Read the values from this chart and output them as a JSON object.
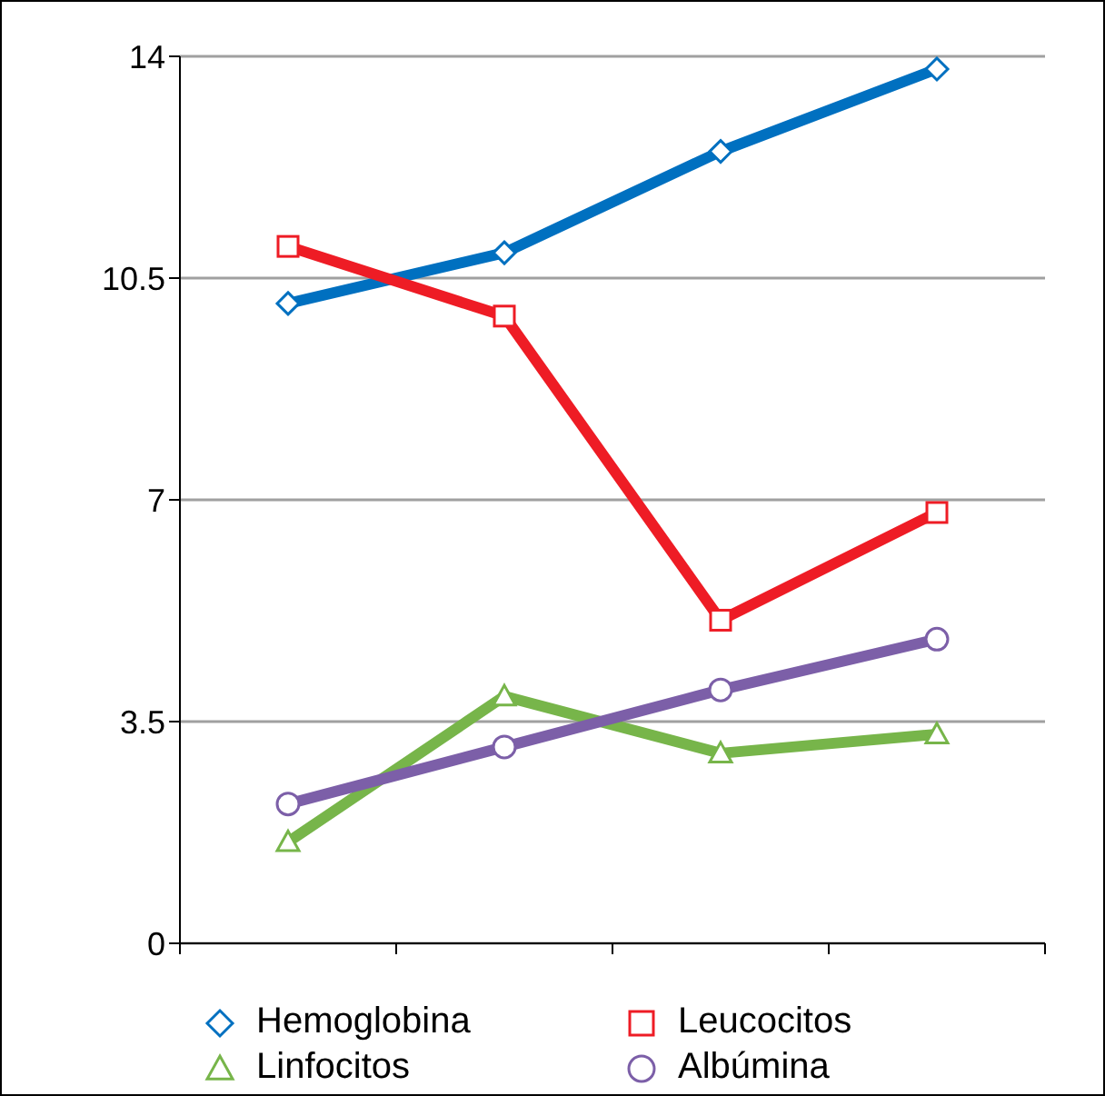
{
  "chart_data": {
    "type": "line",
    "categories": [
      null,
      null,
      null,
      null
    ],
    "ylim": [
      0,
      14
    ],
    "yticks": [
      0,
      3.5,
      7,
      10.5,
      14
    ],
    "grid": "y",
    "legend": "bottom",
    "series": [
      {
        "name": "Hemoglobina",
        "color": "#0070c0",
        "marker": "diamond",
        "values": [
          10.1,
          10.9,
          12.5,
          13.8
        ]
      },
      {
        "name": "Leucocitos",
        "color": "#ee1c25",
        "marker": "square",
        "values": [
          11.0,
          9.9,
          5.1,
          6.8
        ]
      },
      {
        "name": "Linfocitos",
        "color": "#77b54a",
        "marker": "triangle",
        "values": [
          1.6,
          3.9,
          3.0,
          3.3
        ]
      },
      {
        "name": "Albúmina",
        "color": "#7c5fa8",
        "marker": "circle",
        "values": [
          2.2,
          3.1,
          4.0,
          4.8
        ]
      }
    ]
  }
}
